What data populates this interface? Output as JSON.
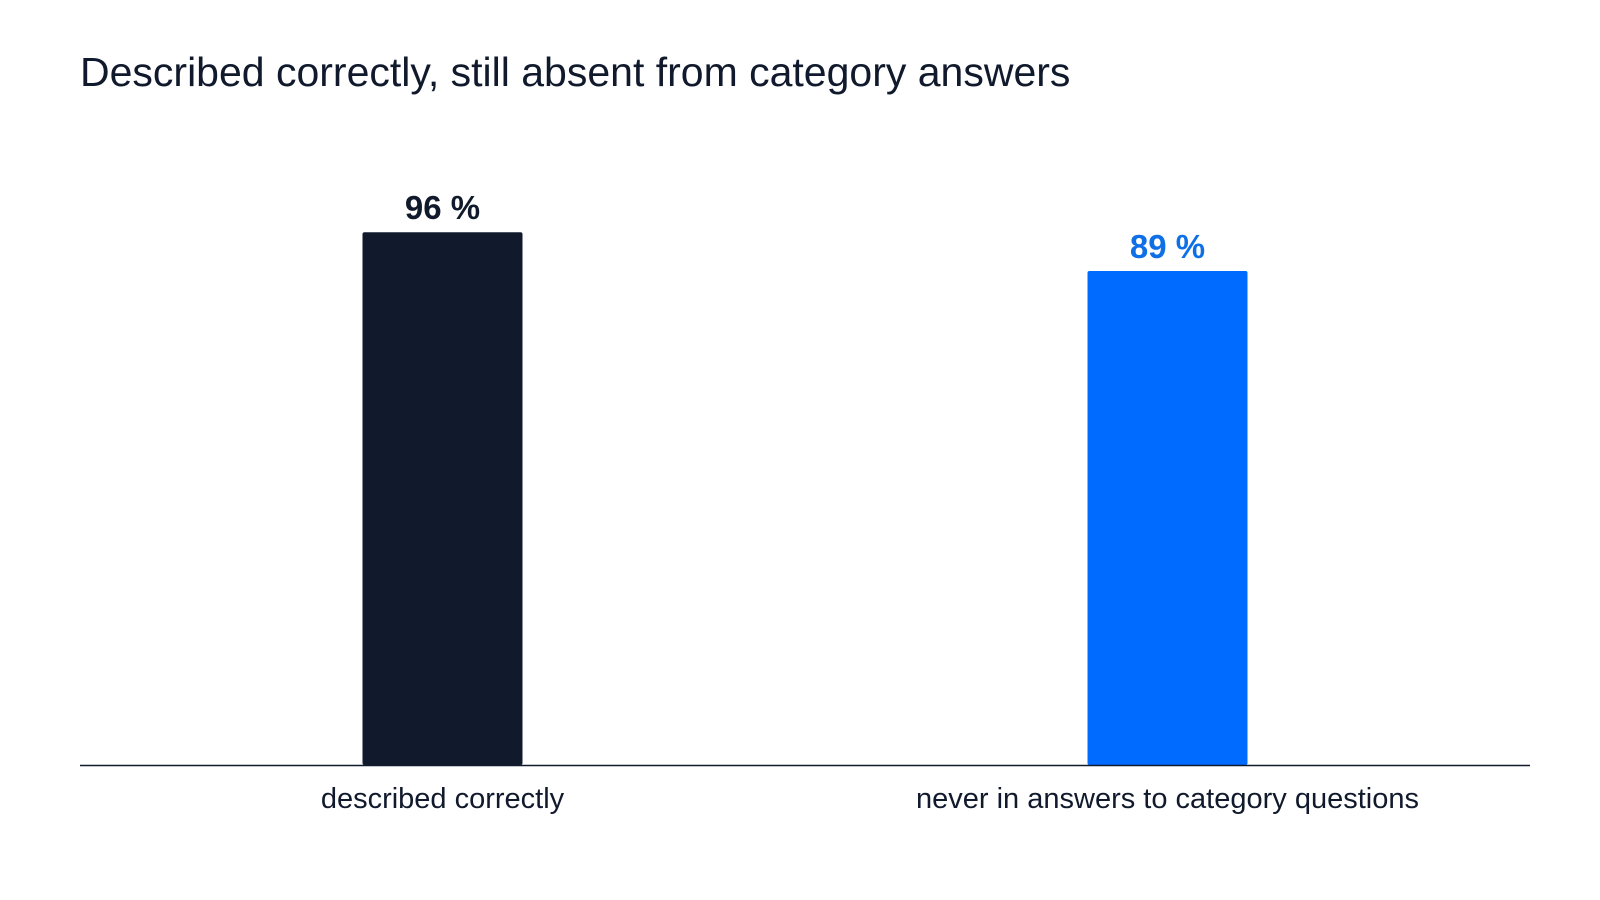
{
  "chart_data": {
    "type": "bar",
    "title": "Described correctly, still absent from category answers",
    "categories": [
      "described correctly",
      "never in answers to category questions"
    ],
    "values": [
      96,
      89
    ],
    "value_labels": [
      "96 %",
      "89 %"
    ],
    "colors": [
      "#111a2c",
      "#006bff"
    ],
    "label_colors": [
      "#111a2c",
      "#0f6fe6"
    ],
    "axis_color": "#111a2c",
    "ylim": [
      0,
      100
    ],
    "grid": false,
    "xlabel": "",
    "ylabel": ""
  }
}
